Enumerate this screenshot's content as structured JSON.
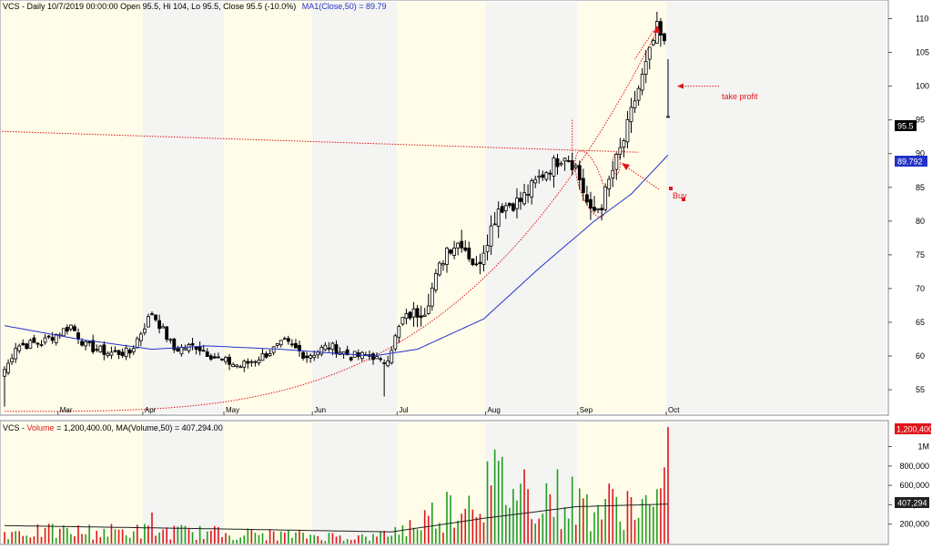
{
  "colors": {
    "background": "#ffffff",
    "band_light": "#fffdea",
    "band_gray": "#f4f4f2",
    "candle": "#000000",
    "ma": "#2432c8",
    "annotation": "#e0141a",
    "vol_up": "#1f9d1f",
    "vol_down": "#e0141a",
    "vol_ma": "#222222",
    "ma_label_bg": "#2432c8",
    "vol_label_bg": "#e0141a"
  },
  "price_panel": {
    "header_prefix": "VCS - Daily 10/7/2019 00:00:00 Open 95.5, Hi 104, Lo 95.5, Close 95.5 (-10.0%)",
    "header_ma": "MA1(Close,50) = 89.79",
    "last_price_label": "95.5",
    "ma_value_label": "89.792",
    "y_ticks": [
      55,
      60,
      65,
      70,
      75,
      80,
      85,
      90,
      95,
      100,
      105,
      110
    ],
    "y_range": [
      51.5,
      112.5
    ],
    "month_labels": [
      "Mar",
      "Apr",
      "May",
      "Jun",
      "Jul",
      "Aug",
      "Sep",
      "Oct"
    ],
    "annotations": {
      "take_profit": "take profit",
      "buy": "Buy"
    }
  },
  "volume_panel": {
    "header_prefix": "VCS - ",
    "header_volume": "Volume",
    "header_rest": " = 1,200,400.00, MA(Volume,50) = 407,294.00",
    "last_volume_label": "1,200,400",
    "ma_label": "407,294",
    "y_ticks": [
      {
        "value": 200000,
        "label": "200,000"
      },
      {
        "value": 400000,
        "label": "400,000"
      },
      {
        "value": 600000,
        "label": "600,000"
      },
      {
        "value": 800000,
        "label": "800,000"
      },
      {
        "value": 1000000,
        "label": "1M"
      }
    ],
    "y_max": 1230000
  },
  "chart_data": {
    "type": "candlestick",
    "symbol": "VCS",
    "interval": "Daily",
    "x_months": [
      "Mar",
      "Apr",
      "May",
      "Jun",
      "Jul",
      "Aug",
      "Sep",
      "Oct"
    ],
    "ohlc_anchor_closes": [
      {
        "bar": 0,
        "close": 57.5
      },
      {
        "bar": 3,
        "close": 61.5
      },
      {
        "bar": 10,
        "close": 62.0
      },
      {
        "bar": 15,
        "close": 63.5
      },
      {
        "bar": 18,
        "close": 64.5
      },
      {
        "bar": 22,
        "close": 61.5
      },
      {
        "bar": 28,
        "close": 60.5
      },
      {
        "bar": 34,
        "close": 60.5
      },
      {
        "bar": 40,
        "close": 66.5
      },
      {
        "bar": 46,
        "close": 61.0
      },
      {
        "bar": 52,
        "close": 61.5
      },
      {
        "bar": 58,
        "close": 59.5
      },
      {
        "bar": 64,
        "close": 58.5
      },
      {
        "bar": 70,
        "close": 60.0
      },
      {
        "bar": 76,
        "close": 62.0
      },
      {
        "bar": 82,
        "close": 60.0
      },
      {
        "bar": 88,
        "close": 61.5
      },
      {
        "bar": 94,
        "close": 60.0
      },
      {
        "bar": 100,
        "close": 60.0
      },
      {
        "bar": 103,
        "close": 58.5
      },
      {
        "bar": 108,
        "close": 65.5
      },
      {
        "bar": 114,
        "close": 67.0
      },
      {
        "bar": 120,
        "close": 76.0
      },
      {
        "bar": 124,
        "close": 77.0
      },
      {
        "bar": 128,
        "close": 73.0
      },
      {
        "bar": 134,
        "close": 82.0
      },
      {
        "bar": 140,
        "close": 83.0
      },
      {
        "bar": 146,
        "close": 87.0
      },
      {
        "bar": 152,
        "close": 90.0
      },
      {
        "bar": 155,
        "close": 88.0
      },
      {
        "bar": 159,
        "close": 81.0
      },
      {
        "bar": 162,
        "close": 82.5
      },
      {
        "bar": 165,
        "close": 87.5
      },
      {
        "bar": 168,
        "close": 92.0
      },
      {
        "bar": 171,
        "close": 98.0
      },
      {
        "bar": 174,
        "close": 103.0
      },
      {
        "bar": 177,
        "close": 108.5
      },
      {
        "bar": 179,
        "close": 106.0
      },
      {
        "bar": 180,
        "close": 95.5
      }
    ],
    "last_bar": {
      "open": 95.5,
      "high": 104,
      "low": 95.5,
      "close": 95.5,
      "change_pct": -10.0
    },
    "ma50_anchors": [
      {
        "bar": 0,
        "value": 64.5
      },
      {
        "bar": 20,
        "value": 62.5
      },
      {
        "bar": 40,
        "value": 61.0
      },
      {
        "bar": 55,
        "value": 61.5
      },
      {
        "bar": 75,
        "value": 61.0
      },
      {
        "bar": 100,
        "value": 60.0
      },
      {
        "bar": 112,
        "value": 61.0
      },
      {
        "bar": 130,
        "value": 65.5
      },
      {
        "bar": 145,
        "value": 73.0
      },
      {
        "bar": 160,
        "value": 80.0
      },
      {
        "bar": 170,
        "value": 84.0
      },
      {
        "bar": 180,
        "value": 89.79
      }
    ],
    "volume_anchors": [
      {
        "bar": 0,
        "value": 150000
      },
      {
        "bar": 40,
        "value": 160000
      },
      {
        "bar": 100,
        "value": 80000
      },
      {
        "bar": 110,
        "value": 220000
      },
      {
        "bar": 120,
        "value": 460000
      },
      {
        "bar": 134,
        "value": 780000
      },
      {
        "bar": 150,
        "value": 600000
      },
      {
        "bar": 160,
        "value": 460000
      },
      {
        "bar": 168,
        "value": 520000
      },
      {
        "bar": 178,
        "value": 430000
      },
      {
        "bar": 180,
        "value": 1200400
      }
    ],
    "volume_ma_anchors": [
      {
        "bar": 0,
        "value": 185000
      },
      {
        "bar": 60,
        "value": 150000
      },
      {
        "bar": 105,
        "value": 120000
      },
      {
        "bar": 130,
        "value": 260000
      },
      {
        "bar": 155,
        "value": 380000
      },
      {
        "bar": 180,
        "value": 407294
      }
    ],
    "annotations": [
      {
        "label": "take profit",
        "price": 100
      },
      {
        "label": "Buy",
        "price": 89.5
      }
    ]
  }
}
